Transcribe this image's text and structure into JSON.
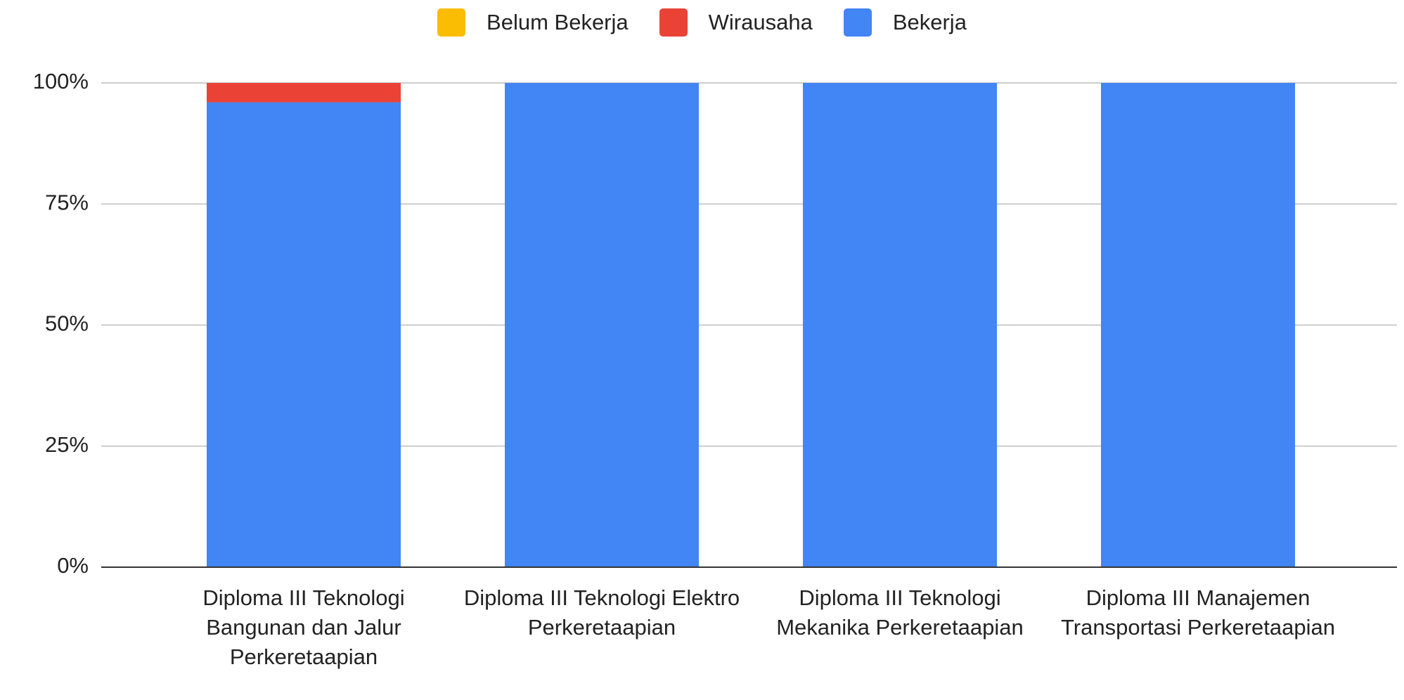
{
  "chart_data": {
    "type": "stacked_bar",
    "categories": [
      "Diploma III Teknologi Bangunan dan Jalur Perkeretaapian",
      "Diploma III Teknologi Elektro Perkeretaapian",
      "Diploma III Teknologi Mekanika Perkeretaapian",
      "Diploma III Manajemen Transportasi Perkeretaapian"
    ],
    "series": [
      {
        "name": "Belum Bekerja",
        "color": "#fbbc04",
        "values": [
          0,
          0,
          0,
          0
        ]
      },
      {
        "name": "Wirausaha",
        "color": "#ea4335",
        "values": [
          4,
          0,
          0,
          0
        ]
      },
      {
        "name": "Bekerja",
        "color": "#4285f4",
        "values": [
          96,
          100,
          100,
          100
        ]
      }
    ],
    "ylim": [
      0,
      100
    ],
    "yticks": [
      {
        "value": 0,
        "label": "0%"
      },
      {
        "value": 25,
        "label": "25%"
      },
      {
        "value": 50,
        "label": "50%"
      },
      {
        "value": 75,
        "label": "75%"
      },
      {
        "value": 100,
        "label": "100%"
      }
    ],
    "grid": true,
    "legend": "top"
  }
}
